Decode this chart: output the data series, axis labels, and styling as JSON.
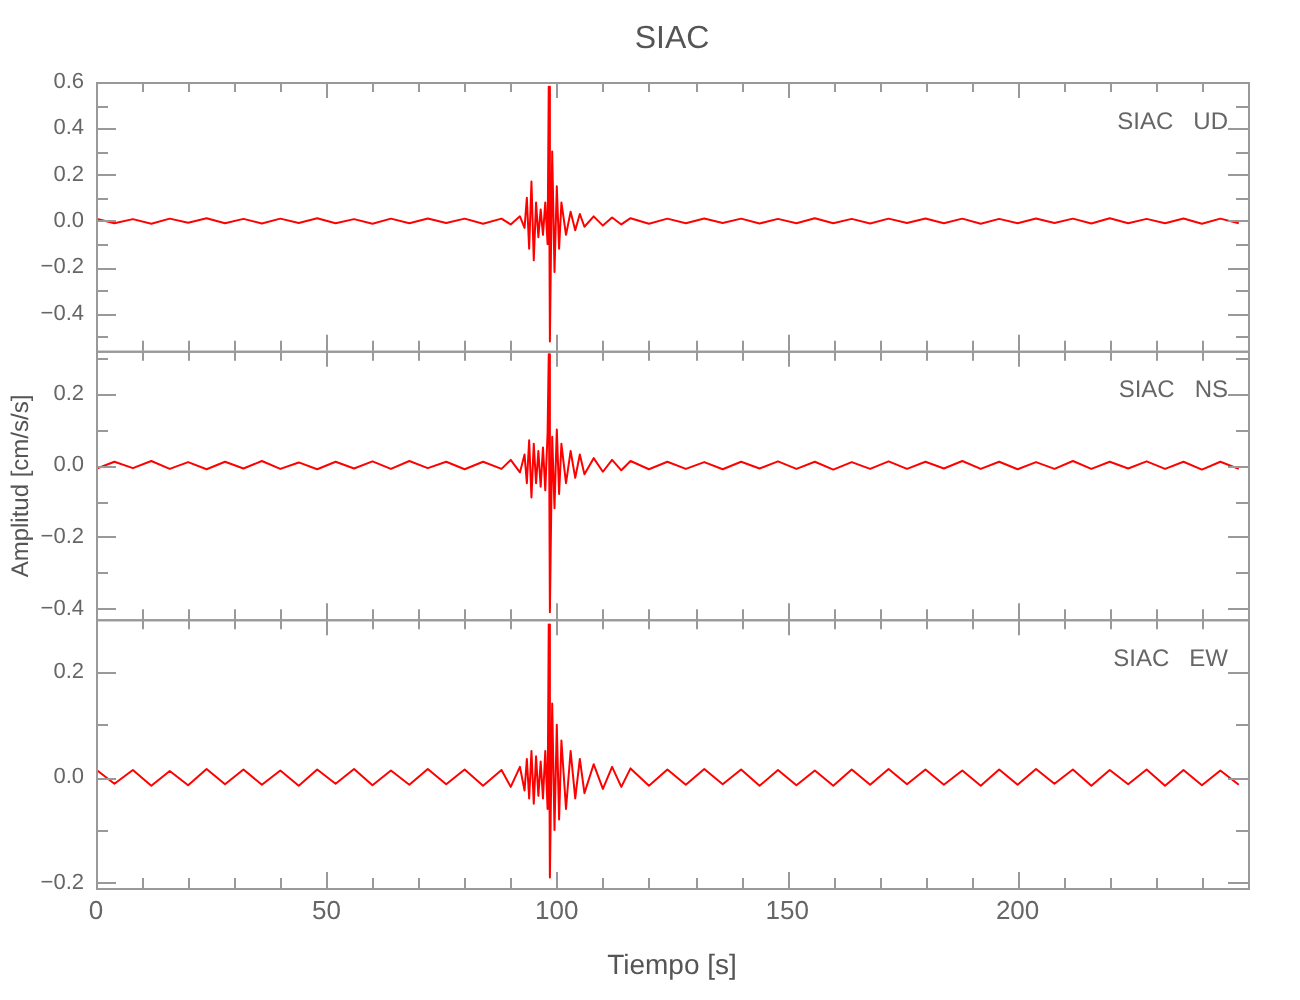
{
  "chart_data": [
    {
      "type": "line",
      "title": "SIAC",
      "annotations": [
        "SIAC   UD"
      ],
      "tick_labels": "y",
      "legend": false,
      "grid": false,
      "marker": "none",
      "xlim": [
        0,
        250
      ],
      "xticks": [
        0,
        {
          "value": 10,
          "label": null
        },
        {
          "value": 20,
          "label": null
        },
        {
          "value": 30,
          "label": null
        },
        {
          "value": 40,
          "label": null
        },
        50,
        {
          "value": 60,
          "label": null
        },
        {
          "value": 70,
          "label": null
        },
        {
          "value": 80,
          "label": null
        },
        {
          "value": 90,
          "label": null
        },
        100,
        {
          "value": 110,
          "label": null
        },
        {
          "value": 120,
          "label": null
        },
        {
          "value": 130,
          "label": null
        },
        {
          "value": 140,
          "label": null
        },
        150,
        {
          "value": 160,
          "label": null
        },
        {
          "value": 170,
          "label": null
        },
        {
          "value": 180,
          "label": null
        },
        {
          "value": 190,
          "label": null
        },
        200,
        {
          "value": 210,
          "label": null
        },
        {
          "value": 220,
          "label": null
        },
        {
          "value": 230,
          "label": null
        },
        {
          "value": 240,
          "label": null
        }
      ],
      "ylim": [
        -0.56,
        0.6
      ],
      "yticks": [
        {
          "value": -0.5,
          "label": null
        },
        {
          "value": -0.4,
          "label": "−0.4"
        },
        {
          "value": -0.3,
          "label": null
        },
        {
          "value": -0.2,
          "label": "−0.2"
        },
        {
          "value": -0.1,
          "label": null
        },
        {
          "value": 0,
          "label": "0.0"
        },
        {
          "value": 0.1,
          "label": null
        },
        0.2,
        {
          "value": 0.3,
          "label": null
        },
        0.4,
        {
          "value": 0.5,
          "label": null
        },
        0.6
      ],
      "series": [
        {
          "color": "#ff0000",
          "x": [
            0,
            4,
            8,
            12,
            16,
            20,
            24,
            28,
            32,
            36,
            40,
            44,
            48,
            52,
            56,
            60,
            64,
            68,
            72,
            76,
            80,
            84,
            88,
            90,
            92,
            93,
            93.5,
            94,
            94.5,
            95,
            95.5,
            96,
            96.5,
            97,
            97.5,
            98,
            98.25,
            98.5,
            99,
            99.5,
            100,
            100.5,
            101,
            102,
            103,
            104,
            105,
            106,
            108,
            110,
            112,
            114,
            116,
            120,
            124,
            128,
            132,
            136,
            140,
            144,
            148,
            152,
            156,
            160,
            164,
            168,
            172,
            176,
            180,
            184,
            188,
            192,
            196,
            200,
            204,
            208,
            212,
            216,
            220,
            224,
            228,
            232,
            236,
            240,
            244,
            248
          ],
          "values": [
            0.01,
            -0.01,
            0.008,
            -0.012,
            0.01,
            -0.008,
            0.012,
            -0.01,
            0.009,
            -0.011,
            0.01,
            -0.009,
            0.012,
            -0.01,
            0.008,
            -0.012,
            0.01,
            -0.01,
            0.011,
            -0.009,
            0.01,
            -0.012,
            0.01,
            -0.015,
            0.02,
            -0.03,
            0.1,
            -0.12,
            0.17,
            -0.17,
            0.08,
            -0.07,
            0.05,
            -0.06,
            0.08,
            -0.1,
            0.58,
            -0.52,
            0.3,
            -0.22,
            0.15,
            -0.12,
            0.08,
            -0.06,
            0.04,
            -0.04,
            0.03,
            -0.025,
            0.02,
            -0.02,
            0.015,
            -0.015,
            0.012,
            -0.012,
            0.01,
            -0.01,
            0.011,
            -0.009,
            0.01,
            -0.011,
            0.009,
            -0.01,
            0.012,
            -0.01,
            0.009,
            -0.011,
            0.01,
            -0.009,
            0.011,
            -0.01,
            0.01,
            -0.012,
            0.009,
            -0.01,
            0.011,
            -0.009,
            0.01,
            -0.011,
            0.012,
            -0.01,
            0.009,
            -0.01,
            0.011,
            -0.012,
            0.01,
            -0.01
          ]
        }
      ]
    },
    {
      "type": "line",
      "ylabel": "Amplitud [cm/s/s]",
      "annotations": [
        "SIAC   NS"
      ],
      "tick_labels": "y",
      "legend": false,
      "grid": false,
      "marker": "none",
      "xlim": [
        0,
        250
      ],
      "xticks": [
        0,
        {
          "value": 10,
          "label": null
        },
        {
          "value": 20,
          "label": null
        },
        {
          "value": 30,
          "label": null
        },
        {
          "value": 40,
          "label": null
        },
        50,
        {
          "value": 60,
          "label": null
        },
        {
          "value": 70,
          "label": null
        },
        {
          "value": 80,
          "label": null
        },
        {
          "value": 90,
          "label": null
        },
        100,
        {
          "value": 110,
          "label": null
        },
        {
          "value": 120,
          "label": null
        },
        {
          "value": 130,
          "label": null
        },
        {
          "value": 140,
          "label": null
        },
        150,
        {
          "value": 160,
          "label": null
        },
        {
          "value": 170,
          "label": null
        },
        {
          "value": 180,
          "label": null
        },
        {
          "value": 190,
          "label": null
        },
        200,
        {
          "value": 210,
          "label": null
        },
        {
          "value": 220,
          "label": null
        },
        {
          "value": 230,
          "label": null
        },
        {
          "value": 240,
          "label": null
        }
      ],
      "ylim": [
        -0.43,
        0.32
      ],
      "yticks": [
        {
          "value": -0.4,
          "label": "−0.4"
        },
        {
          "value": -0.3,
          "label": null
        },
        {
          "value": -0.2,
          "label": "−0.2"
        },
        {
          "value": -0.1,
          "label": null
        },
        {
          "value": 0,
          "label": "0.0"
        },
        {
          "value": 0.1,
          "label": null
        },
        0.2,
        {
          "value": 0.3,
          "label": null
        }
      ],
      "series": [
        {
          "color": "#ff0000",
          "x": [
            0,
            4,
            8,
            12,
            16,
            20,
            24,
            28,
            32,
            36,
            40,
            44,
            48,
            52,
            56,
            60,
            64,
            68,
            72,
            76,
            80,
            84,
            88,
            90,
            92,
            93,
            93.5,
            94,
            94.5,
            95,
            95.5,
            96,
            96.5,
            97,
            97.5,
            98,
            98.25,
            98.5,
            99,
            99.5,
            100,
            100.5,
            101,
            102,
            103,
            104,
            105,
            106,
            108,
            110,
            112,
            114,
            116,
            120,
            124,
            128,
            132,
            136,
            140,
            144,
            148,
            152,
            156,
            160,
            164,
            168,
            172,
            176,
            180,
            184,
            188,
            192,
            196,
            200,
            204,
            208,
            212,
            216,
            220,
            224,
            228,
            232,
            236,
            240,
            244,
            248
          ],
          "values": [
            -0.01,
            0.01,
            -0.008,
            0.012,
            -0.01,
            0.009,
            -0.011,
            0.01,
            -0.009,
            0.012,
            -0.01,
            0.008,
            -0.011,
            0.01,
            -0.009,
            0.011,
            -0.01,
            0.012,
            -0.008,
            0.01,
            -0.011,
            0.01,
            -0.01,
            0.015,
            -0.02,
            0.03,
            -0.05,
            0.07,
            -0.09,
            0.06,
            -0.05,
            0.04,
            -0.06,
            0.05,
            -0.07,
            0.09,
            0.31,
            -0.41,
            0.08,
            -0.12,
            0.1,
            -0.08,
            0.06,
            -0.05,
            0.04,
            -0.035,
            0.03,
            -0.025,
            0.02,
            -0.018,
            0.015,
            -0.014,
            0.012,
            -0.011,
            0.01,
            -0.01,
            0.009,
            -0.011,
            0.01,
            -0.009,
            0.011,
            -0.01,
            0.01,
            -0.012,
            0.009,
            -0.01,
            0.011,
            -0.01,
            0.01,
            -0.009,
            0.012,
            -0.01,
            0.01,
            -0.011,
            0.009,
            -0.01,
            0.012,
            -0.01,
            0.01,
            -0.009,
            0.011,
            -0.01,
            0.01,
            -0.012,
            0.01,
            -0.01
          ]
        }
      ]
    },
    {
      "type": "line",
      "xlabel": "Tiempo [s]",
      "annotations": [
        "SIAC   EW"
      ],
      "legend": false,
      "grid": false,
      "marker": "none",
      "xlim": [
        0,
        250
      ],
      "xticks": [
        0,
        {
          "value": 10,
          "label": null
        },
        {
          "value": 20,
          "label": null
        },
        {
          "value": 30,
          "label": null
        },
        {
          "value": 40,
          "label": null
        },
        50,
        {
          "value": 60,
          "label": null
        },
        {
          "value": 70,
          "label": null
        },
        {
          "value": 80,
          "label": null
        },
        {
          "value": 90,
          "label": null
        },
        100,
        {
          "value": 110,
          "label": null
        },
        {
          "value": 120,
          "label": null
        },
        {
          "value": 130,
          "label": null
        },
        {
          "value": 140,
          "label": null
        },
        150,
        {
          "value": 160,
          "label": null
        },
        {
          "value": 170,
          "label": null
        },
        {
          "value": 180,
          "label": null
        },
        {
          "value": 190,
          "label": null
        },
        200,
        {
          "value": 210,
          "label": null
        },
        {
          "value": 220,
          "label": null
        },
        {
          "value": 230,
          "label": null
        },
        {
          "value": 240,
          "label": null
        }
      ],
      "ylim": [
        -0.21,
        0.3
      ],
      "yticks": [
        {
          "value": -0.2,
          "label": "−0.2"
        },
        {
          "value": -0.1,
          "label": null
        },
        {
          "value": 0,
          "label": "0.0"
        },
        {
          "value": 0.1,
          "label": null
        },
        0.2
      ],
      "series": [
        {
          "color": "#ff0000",
          "x": [
            0,
            4,
            8,
            12,
            16,
            20,
            24,
            28,
            32,
            36,
            40,
            44,
            48,
            52,
            56,
            60,
            64,
            68,
            72,
            76,
            80,
            84,
            88,
            90,
            92,
            93,
            93.5,
            94,
            94.5,
            95,
            95.5,
            96,
            96.5,
            97,
            97.5,
            98,
            98.25,
            98.5,
            99,
            99.5,
            100,
            100.5,
            101,
            102,
            103,
            104,
            105,
            106,
            108,
            110,
            112,
            114,
            116,
            120,
            124,
            128,
            132,
            136,
            140,
            144,
            148,
            152,
            156,
            160,
            164,
            168,
            172,
            176,
            180,
            184,
            188,
            192,
            196,
            200,
            204,
            208,
            212,
            216,
            220,
            224,
            228,
            232,
            236,
            240,
            244,
            248
          ],
          "values": [
            0.015,
            -0.012,
            0.014,
            -0.016,
            0.012,
            -0.015,
            0.016,
            -0.013,
            0.015,
            -0.014,
            0.013,
            -0.016,
            0.015,
            -0.012,
            0.016,
            -0.015,
            0.013,
            -0.014,
            0.016,
            -0.013,
            0.015,
            -0.016,
            0.014,
            -0.018,
            0.02,
            -0.025,
            0.035,
            -0.04,
            0.05,
            -0.05,
            0.04,
            -0.035,
            0.03,
            -0.04,
            0.05,
            -0.06,
            0.29,
            -0.19,
            0.14,
            -0.1,
            0.1,
            -0.08,
            0.07,
            -0.06,
            0.05,
            -0.04,
            0.035,
            -0.03,
            0.025,
            -0.022,
            0.02,
            -0.018,
            0.017,
            -0.016,
            0.015,
            -0.014,
            0.016,
            -0.013,
            0.015,
            -0.016,
            0.014,
            -0.015,
            0.013,
            -0.016,
            0.015,
            -0.014,
            0.016,
            -0.013,
            0.015,
            -0.014,
            0.013,
            -0.016,
            0.015,
            -0.014,
            0.016,
            -0.012,
            0.015,
            -0.016,
            0.014,
            -0.013,
            0.015,
            -0.016,
            0.014,
            -0.015,
            0.013,
            -0.014
          ]
        }
      ]
    }
  ]
}
